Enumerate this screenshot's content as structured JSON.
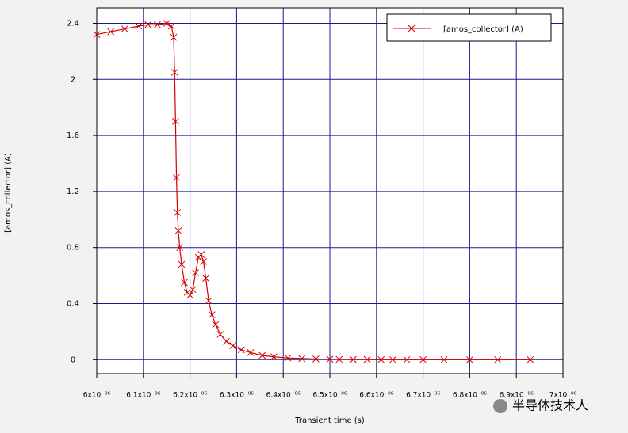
{
  "chart_data": {
    "type": "line",
    "x_label": "Transient time (s)",
    "y_label": "I[amos_collector] (A)",
    "watermark": "半导体技术人",
    "series": [
      {
        "name": "I[amos_collector] (A)",
        "color": "#d40000",
        "x": [
          6e-06,
          6.03e-06,
          6.06e-06,
          6.09e-06,
          6.11e-06,
          6.13e-06,
          6.15e-06,
          6.16e-06,
          6.165e-06,
          6.167e-06,
          6.169e-06,
          6.171e-06,
          6.173e-06,
          6.175e-06,
          6.178e-06,
          6.182e-06,
          6.188e-06,
          6.194e-06,
          6.2e-06,
          6.206e-06,
          6.212e-06,
          6.218e-06,
          6.224e-06,
          6.229e-06,
          6.234e-06,
          6.24e-06,
          6.247e-06,
          6.255e-06,
          6.265e-06,
          6.278e-06,
          6.292e-06,
          6.31e-06,
          6.33e-06,
          6.355e-06,
          6.38e-06,
          6.41e-06,
          6.44e-06,
          6.47e-06,
          6.5e-06,
          6.52e-06,
          6.55e-06,
          6.58e-06,
          6.61e-06,
          6.635e-06,
          6.665e-06,
          6.7e-06,
          6.745e-06,
          6.8e-06,
          6.86e-06,
          6.93e-06
        ],
        "values": [
          2.32,
          2.34,
          2.36,
          2.38,
          2.39,
          2.39,
          2.4,
          2.38,
          2.3,
          2.05,
          1.7,
          1.3,
          1.05,
          0.92,
          0.8,
          0.68,
          0.55,
          0.48,
          0.46,
          0.5,
          0.62,
          0.73,
          0.75,
          0.7,
          0.58,
          0.42,
          0.32,
          0.25,
          0.18,
          0.13,
          0.1,
          0.07,
          0.05,
          0.03,
          0.02,
          0.012,
          0.008,
          0.005,
          0.003,
          0.002,
          0.001,
          0.001,
          0,
          0,
          0,
          0,
          0,
          0,
          0,
          0
        ]
      }
    ],
    "xlim": [
      6e-06,
      7e-06
    ],
    "ylim": [
      -0.1,
      2.51
    ],
    "xticks": [
      {
        "value": 6e-06,
        "label": "6x10⁻⁰⁶"
      },
      {
        "value": 6.1e-06,
        "label": "6.1x10⁻⁰⁶"
      },
      {
        "value": 6.2e-06,
        "label": "6.2x10⁻⁰⁶"
      },
      {
        "value": 6.3e-06,
        "label": "6.3x10⁻⁰⁶"
      },
      {
        "value": 6.4e-06,
        "label": "6.4x10⁻⁰⁶"
      },
      {
        "value": 6.5e-06,
        "label": "6.5x10⁻⁰⁶"
      },
      {
        "value": 6.6e-06,
        "label": "6.6x10⁻⁰⁶"
      },
      {
        "value": 6.7e-06,
        "label": "6.7x10⁻⁰⁶"
      },
      {
        "value": 6.8e-06,
        "label": "6.8x10⁻⁰⁶"
      },
      {
        "value": 6.9e-06,
        "label": "6.9x10⁻⁰⁶"
      },
      {
        "value": 7e-06,
        "label": "7x10⁻⁰⁶"
      }
    ],
    "yticks": [
      0,
      0.4,
      0.8,
      1.2,
      1.6,
      2,
      2.4
    ],
    "grid": true,
    "grid_color": "#1a1a8c",
    "legend": "upper right"
  }
}
